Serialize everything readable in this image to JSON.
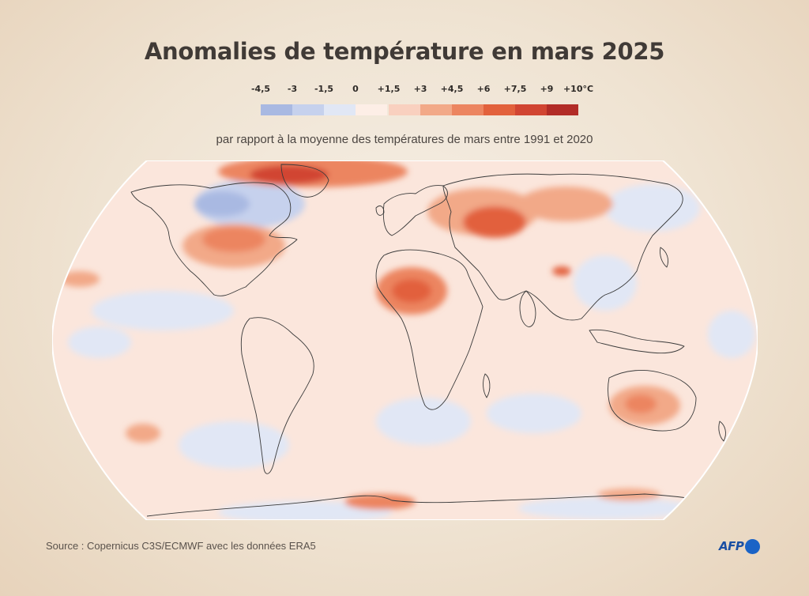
{
  "title": "Anomalies de température en mars 2025",
  "subtitle": "par rapport à la moyenne des températures de mars entre 1991 et 2020",
  "legend": {
    "ticks": [
      "-4,5",
      "-3",
      "-1,5",
      "0",
      "+1,5",
      "+3",
      "+4,5",
      "+6",
      "+7,5",
      "+9",
      "+10°C"
    ],
    "colors": [
      "#a9b9e2",
      "#c6d1ed",
      "#e1e7f5",
      "#fdeee6",
      "#f9d0bf",
      "#f2a988",
      "#ec8560",
      "#e2613c",
      "#d14532",
      "#b22c27",
      "#8c1c23"
    ]
  },
  "map": {
    "ocean_base_color": "#fbe6dc",
    "coastline_color": "#3a3a3a",
    "graticule": "none"
  },
  "source": "Source : Copernicus C3S/ECMWF  avec les données ERA5",
  "logo": {
    "text": "AFP",
    "dot_color": "#1a63c6"
  }
}
